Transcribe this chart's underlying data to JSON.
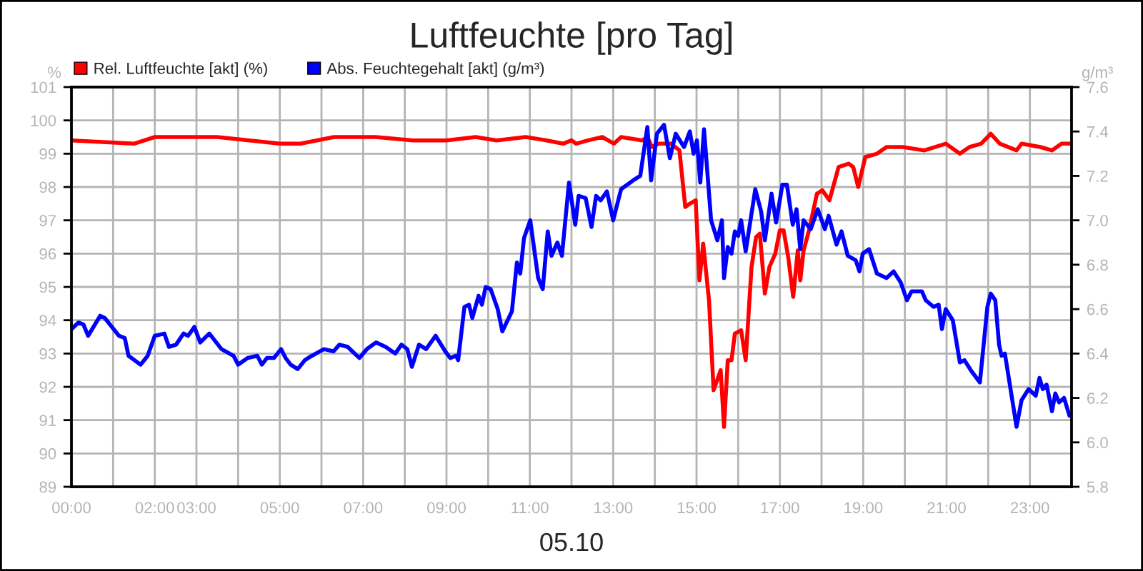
{
  "chart_data": {
    "type": "line",
    "title": "Luftfeuchte [pro Tag]",
    "xlabel": "05.10",
    "ylabel": "%",
    "y2label": "g/m³",
    "legend": "top left",
    "grid": true,
    "line_style": "solid",
    "marker": "none",
    "xlim": [
      0,
      24
    ],
    "xticks": [
      {
        "value": 0,
        "label": "00:00"
      },
      {
        "value": 1,
        "label": null
      },
      {
        "value": 2,
        "label": "02:00"
      },
      {
        "value": 3,
        "label": "03:00"
      },
      {
        "value": 4,
        "label": null
      },
      {
        "value": 5,
        "label": "05:00"
      },
      {
        "value": 6,
        "label": null
      },
      {
        "value": 7,
        "label": "07:00"
      },
      {
        "value": 8,
        "label": null
      },
      {
        "value": 9,
        "label": "09:00"
      },
      {
        "value": 10,
        "label": null
      },
      {
        "value": 11,
        "label": "11:00"
      },
      {
        "value": 12,
        "label": null
      },
      {
        "value": 13,
        "label": "13:00"
      },
      {
        "value": 14,
        "label": null
      },
      {
        "value": 15,
        "label": "15:00"
      },
      {
        "value": 16,
        "label": null
      },
      {
        "value": 17,
        "label": "17:00"
      },
      {
        "value": 18,
        "label": null
      },
      {
        "value": 19,
        "label": "19:00"
      },
      {
        "value": 20,
        "label": null
      },
      {
        "value": 21,
        "label": "21:00"
      },
      {
        "value": 22,
        "label": null
      },
      {
        "value": 23,
        "label": "23:00"
      },
      {
        "value": 24,
        "label": null
      }
    ],
    "ylim": [
      89,
      101
    ],
    "yticks": [
      89,
      90,
      91,
      92,
      93,
      94,
      95,
      96,
      97,
      98,
      99,
      100,
      101
    ],
    "y2lim": [
      5.8,
      7.6
    ],
    "y2ticks": [
      {
        "value": 5.8,
        "label": "5.8"
      },
      {
        "value": 6.0,
        "label": "6.0"
      },
      {
        "value": 6.2,
        "label": "6.2"
      },
      {
        "value": 6.4,
        "label": "6.4"
      },
      {
        "value": 6.6,
        "label": "6.6"
      },
      {
        "value": 6.8,
        "label": "6.8"
      },
      {
        "value": 7.0,
        "label": "7.0"
      },
      {
        "value": 7.2,
        "label": "7.2"
      },
      {
        "value": 7.4,
        "label": "7.4"
      },
      {
        "value": 7.6,
        "label": "7.6"
      }
    ],
    "series": [
      {
        "name": "Rel. Luftfeuchte [akt] (%)",
        "color": "#ff0000",
        "x": [
          0,
          1.5,
          2.0,
          3.5,
          5.0,
          5.5,
          6.3,
          7.3,
          8.2,
          9.0,
          9.7,
          10.2,
          10.9,
          11.4,
          11.8,
          12.0,
          12.11,
          12.4,
          12.74,
          13.02,
          13.19,
          13.7,
          13.82,
          13.93,
          14.1,
          14.39,
          14.59,
          14.73,
          14.84,
          14.98,
          15.07,
          15.16,
          15.3,
          15.41,
          15.58,
          15.66,
          15.75,
          15.84,
          15.92,
          16.07,
          16.18,
          16.32,
          16.43,
          16.52,
          16.64,
          16.75,
          16.89,
          17.0,
          17.09,
          17.2,
          17.32,
          17.43,
          17.49,
          17.57,
          17.7,
          17.89,
          18.02,
          18.19,
          18.41,
          18.65,
          18.76,
          18.88,
          19.05,
          19.33,
          19.56,
          19.95,
          20.47,
          20.98,
          21.32,
          21.55,
          21.83,
          22.06,
          22.28,
          22.68,
          22.8,
          23.25,
          23.53,
          23.76,
          23.95
        ],
        "values": [
          99.4,
          99.3,
          99.5,
          99.5,
          99.3,
          99.3,
          99.5,
          99.5,
          99.4,
          99.4,
          99.5,
          99.4,
          99.5,
          99.4,
          99.3,
          99.4,
          99.3,
          99.4,
          99.5,
          99.3,
          99.5,
          99.4,
          99.5,
          99.2,
          99.3,
          99.3,
          99.1,
          97.4,
          97.5,
          97.6,
          95.2,
          96.3,
          94.6,
          91.9,
          92.5,
          90.8,
          92.8,
          92.8,
          93.6,
          93.7,
          92.8,
          95.6,
          96.5,
          96.6,
          94.8,
          95.6,
          96.0,
          96.7,
          96.7,
          95.9,
          94.7,
          96.1,
          95.2,
          96.1,
          96.7,
          97.8,
          97.9,
          97.6,
          98.6,
          98.7,
          98.6,
          98.0,
          98.9,
          99.0,
          99.2,
          99.2,
          99.1,
          99.3,
          99.0,
          99.2,
          99.3,
          99.6,
          99.3,
          99.1,
          99.3,
          99.2,
          99.1,
          99.3,
          99.3
        ]
      },
      {
        "name": "Abs. Feuchtegehalt [akt] (g/m³)",
        "color": "#0000ff",
        "axis": "y2",
        "x": [
          0,
          0.17,
          0.29,
          0.4,
          0.69,
          0.8,
          0.97,
          1.14,
          1.28,
          1.37,
          1.66,
          1.83,
          2.0,
          2.23,
          2.34,
          2.51,
          2.69,
          2.8,
          2.95,
          3.09,
          3.31,
          3.6,
          3.89,
          4.0,
          4.23,
          4.46,
          4.57,
          4.69,
          4.86,
          5.03,
          5.14,
          5.26,
          5.43,
          5.6,
          5.77,
          6.06,
          6.29,
          6.43,
          6.63,
          6.74,
          6.91,
          7.09,
          7.31,
          7.54,
          7.77,
          7.92,
          8.06,
          8.17,
          8.34,
          8.51,
          8.74,
          8.97,
          9.09,
          9.23,
          9.28,
          9.43,
          9.54,
          9.62,
          9.77,
          9.85,
          9.94,
          10.06,
          10.23,
          10.34,
          10.57,
          10.69,
          10.77,
          10.86,
          11.01,
          11.2,
          11.31,
          11.43,
          11.52,
          11.66,
          11.77,
          11.94,
          12.09,
          12.17,
          12.34,
          12.48,
          12.59,
          12.7,
          12.85,
          13.0,
          13.19,
          13.48,
          13.65,
          13.82,
          13.91,
          14.05,
          14.22,
          14.36,
          14.5,
          14.7,
          14.84,
          14.93,
          15.01,
          15.09,
          15.18,
          15.35,
          15.5,
          15.61,
          15.66,
          15.75,
          15.84,
          15.92,
          16.0,
          16.07,
          16.18,
          16.41,
          16.55,
          16.64,
          16.8,
          16.91,
          17.06,
          17.17,
          17.31,
          17.4,
          17.49,
          17.57,
          17.74,
          17.91,
          18.08,
          18.17,
          18.36,
          18.48,
          18.63,
          18.82,
          18.91,
          18.99,
          19.14,
          19.33,
          19.56,
          19.73,
          19.9,
          20.05,
          20.16,
          20.41,
          20.5,
          20.69,
          20.81,
          20.89,
          20.98,
          21.15,
          21.32,
          21.43,
          21.6,
          21.8,
          21.98,
          22.06,
          22.17,
          22.26,
          22.32,
          22.4,
          22.68,
          22.8,
          22.97,
          23.14,
          23.23,
          23.31,
          23.4,
          23.53,
          23.61,
          23.7,
          23.82,
          23.95
        ],
        "values": [
          6.51,
          6.54,
          6.53,
          6.48,
          6.57,
          6.56,
          6.52,
          6.48,
          6.47,
          6.39,
          6.35,
          6.39,
          6.48,
          6.49,
          6.43,
          6.44,
          6.49,
          6.48,
          6.52,
          6.45,
          6.49,
          6.42,
          6.39,
          6.35,
          6.38,
          6.39,
          6.35,
          6.38,
          6.38,
          6.42,
          6.38,
          6.35,
          6.33,
          6.37,
          6.39,
          6.42,
          6.41,
          6.44,
          6.43,
          6.41,
          6.38,
          6.42,
          6.45,
          6.43,
          6.4,
          6.44,
          6.42,
          6.34,
          6.44,
          6.42,
          6.48,
          6.41,
          6.38,
          6.39,
          6.37,
          6.61,
          6.62,
          6.56,
          6.66,
          6.62,
          6.7,
          6.69,
          6.6,
          6.5,
          6.59,
          6.81,
          6.76,
          6.92,
          7.0,
          6.74,
          6.69,
          6.95,
          6.84,
          6.9,
          6.84,
          7.17,
          6.98,
          7.11,
          7.1,
          6.97,
          7.11,
          7.09,
          7.13,
          7.0,
          7.14,
          7.18,
          7.2,
          7.42,
          7.18,
          7.39,
          7.43,
          7.28,
          7.39,
          7.33,
          7.4,
          7.3,
          7.36,
          7.17,
          7.41,
          7.0,
          6.91,
          7.0,
          6.74,
          6.88,
          6.85,
          6.95,
          6.93,
          7.0,
          6.86,
          7.14,
          7.04,
          6.91,
          7.12,
          6.99,
          7.16,
          7.16,
          6.98,
          7.05,
          6.87,
          7.0,
          6.96,
          7.05,
          6.96,
          7.02,
          6.89,
          6.95,
          6.84,
          6.82,
          6.77,
          6.85,
          6.87,
          6.76,
          6.74,
          6.77,
          6.72,
          6.64,
          6.68,
          6.68,
          6.64,
          6.61,
          6.62,
          6.51,
          6.6,
          6.55,
          6.36,
          6.37,
          6.32,
          6.27,
          6.61,
          6.67,
          6.64,
          6.44,
          6.39,
          6.4,
          6.07,
          6.19,
          6.24,
          6.21,
          6.29,
          6.24,
          6.26,
          6.14,
          6.22,
          6.18,
          6.2,
          6.12
        ]
      }
    ]
  }
}
